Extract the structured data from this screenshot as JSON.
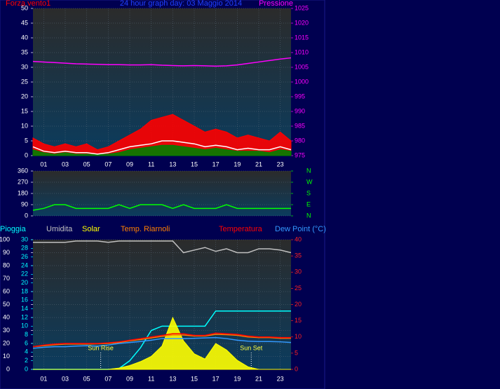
{
  "chart_data": [
    {
      "type": "line",
      "title": "24 hour graph day: 03 Maggio 2014",
      "x": [
        0,
        1,
        2,
        3,
        4,
        5,
        6,
        7,
        8,
        9,
        10,
        11,
        12,
        13,
        14,
        15,
        16,
        17,
        18,
        19,
        20,
        21,
        22,
        23,
        24
      ],
      "xlim": [
        0,
        24
      ],
      "xticks": [
        {
          "value": 1,
          "label": "01"
        },
        {
          "value": 3,
          "label": "03"
        },
        {
          "value": 5,
          "label": "05"
        },
        {
          "value": 7,
          "label": "07"
        },
        {
          "value": 9,
          "label": "09"
        },
        {
          "value": 11,
          "label": "11"
        },
        {
          "value": 13,
          "label": "13"
        },
        {
          "value": 15,
          "label": "15"
        },
        {
          "value": 17,
          "label": "17"
        },
        {
          "value": 19,
          "label": "19"
        },
        {
          "value": 21,
          "label": "21"
        },
        {
          "value": 23,
          "label": "23"
        }
      ],
      "ylim": [
        0,
        50
      ],
      "yticks": [
        0,
        5,
        10,
        15,
        20,
        25,
        30,
        35,
        40,
        45,
        50
      ],
      "y2lim": [
        975,
        1025
      ],
      "y2ticks": [
        975,
        980,
        985,
        990,
        995,
        1000,
        1005,
        1010,
        1015,
        1020,
        1025
      ],
      "grid": true,
      "series": [
        {
          "name": "Forza vento1",
          "color": "#ff0000",
          "style": "area",
          "axis": "y",
          "values": [
            6,
            4,
            3,
            4,
            3,
            4,
            2,
            3,
            5,
            7,
            9,
            12,
            13,
            14,
            12,
            10,
            8,
            9,
            8,
            6,
            7,
            6,
            5,
            8,
            5
          ]
        },
        {
          "color": "#008000",
          "style": "area",
          "axis": "y",
          "values": [
            2,
            1,
            0.5,
            1,
            0.5,
            0.5,
            0.3,
            0.5,
            1,
            2,
            2.5,
            3,
            3.5,
            3.5,
            3,
            2.5,
            2,
            2.5,
            2,
            1.5,
            1.5,
            1.5,
            1,
            2,
            1.5
          ]
        },
        {
          "color": "#ffffff",
          "style": "line",
          "axis": "y",
          "values": [
            3,
            1.5,
            1,
            1.5,
            1,
            1,
            0.5,
            1,
            2,
            3,
            3.5,
            4,
            5,
            5,
            4.5,
            4,
            3,
            3.5,
            3,
            2,
            2.5,
            2,
            2,
            3,
            2
          ]
        },
        {
          "name": "Pressione",
          "color": "#ff00ff",
          "style": "line",
          "axis": "y2",
          "values": [
            1007,
            1006.8,
            1006.6,
            1006.4,
            1006.2,
            1006.1,
            1006,
            1005.9,
            1005.9,
            1005.8,
            1005.8,
            1005.9,
            1005.7,
            1005.6,
            1005.5,
            1005.6,
            1005.5,
            1005.4,
            1005.5,
            1005.8,
            1006.3,
            1006.8,
            1007.3,
            1007.8,
            1008.2
          ]
        }
      ]
    },
    {
      "type": "line",
      "x": [
        0,
        1,
        2,
        3,
        4,
        5,
        6,
        7,
        8,
        9,
        10,
        11,
        12,
        13,
        14,
        15,
        16,
        17,
        18,
        19,
        20,
        21,
        22,
        23,
        24
      ],
      "xlim": [
        0,
        24
      ],
      "ylim": [
        0,
        360
      ],
      "yticks": [
        0,
        90,
        180,
        270,
        360
      ],
      "y2lim": [
        0,
        360
      ],
      "y2ticks": [
        {
          "value": 360,
          "label": "N"
        },
        {
          "value": 270,
          "label": "W"
        },
        {
          "value": 180,
          "label": "S"
        },
        {
          "value": 90,
          "label": "E"
        },
        {
          "value": 0,
          "label": "N"
        }
      ],
      "grid": true,
      "series": [
        {
          "color": "#00ff00",
          "style": "line",
          "axis": "y",
          "values": [
            45,
            60,
            90,
            90,
            60,
            60,
            60,
            60,
            90,
            60,
            90,
            90,
            90,
            60,
            90,
            60,
            60,
            60,
            90,
            60,
            60,
            60,
            60,
            60,
            60
          ]
        }
      ]
    },
    {
      "type": "line",
      "x": [
        0,
        1,
        2,
        3,
        4,
        5,
        6,
        7,
        8,
        9,
        10,
        11,
        12,
        13,
        14,
        15,
        16,
        17,
        18,
        19,
        20,
        21,
        22,
        23,
        24
      ],
      "xlim": [
        0,
        24
      ],
      "xticks": [
        {
          "value": 1,
          "label": "01"
        },
        {
          "value": 3,
          "label": "03"
        },
        {
          "value": 5,
          "label": "05"
        },
        {
          "value": 7,
          "label": "07"
        },
        {
          "value": 9,
          "label": "09"
        },
        {
          "value": 11,
          "label": "11"
        },
        {
          "value": 13,
          "label": "13"
        },
        {
          "value": 15,
          "label": "15"
        },
        {
          "value": 17,
          "label": "17"
        },
        {
          "value": 19,
          "label": "19"
        },
        {
          "value": 21,
          "label": "21"
        },
        {
          "value": 23,
          "label": "23"
        }
      ],
      "ylim": [
        0,
        100
      ],
      "yticks": [
        0,
        10,
        20,
        30,
        40,
        50,
        60,
        70,
        80,
        90,
        100
      ],
      "y3lim": [
        0,
        30
      ],
      "y3ticks": [
        0,
        2,
        4,
        6,
        8,
        10,
        12,
        14,
        16,
        18,
        20,
        22,
        24,
        26,
        28,
        30
      ],
      "y2lim": [
        0,
        40
      ],
      "y2ticks": [
        0,
        5,
        10,
        15,
        20,
        25,
        30,
        35,
        40
      ],
      "grid": true,
      "series": [
        {
          "name": "Pioggia",
          "color": "#00ffff",
          "style": "line",
          "axis": "y3",
          "values": [
            0,
            0,
            0,
            0,
            0,
            0,
            0,
            0,
            0.2,
            2,
            5,
            9,
            10,
            10,
            10,
            10,
            10,
            13.5,
            13.5,
            13.5,
            13.5,
            13.5,
            13.5,
            13.5,
            13.5
          ]
        },
        {
          "name": "Umidita",
          "color": "#c0c0c0",
          "style": "line",
          "axis": "y",
          "values": [
            98,
            98,
            98,
            98,
            99,
            99,
            99,
            98,
            99,
            99,
            99,
            99,
            99,
            99,
            90,
            92,
            94,
            91,
            93,
            90,
            90,
            93,
            93,
            92,
            90
          ]
        },
        {
          "name": "Solar",
          "color": "#ffff00",
          "style": "area",
          "axis": "y",
          "values": [
            0,
            0,
            0,
            0,
            0,
            0,
            0,
            0,
            1,
            3,
            6,
            10,
            18,
            40,
            22,
            12,
            8,
            20,
            15,
            7,
            2,
            0,
            0,
            0,
            0
          ]
        },
        {
          "name": "Temp. Riarnoli",
          "color": "#ff8000",
          "style": "line",
          "axis": "y2",
          "values": [
            7,
            7.3,
            7.6,
            7.8,
            7.8,
            7.8,
            7.9,
            8,
            8.3,
            8.8,
            9.2,
            9.7,
            10.2,
            10.6,
            10.6,
            10.3,
            10.3,
            10.8,
            10.7,
            10.5,
            10,
            9.8,
            9.8,
            9.6,
            9.6
          ]
        },
        {
          "name": "Temperatura",
          "color": "#ff0000",
          "style": "line",
          "axis": "y2",
          "values": [
            7,
            7.5,
            7.8,
            8,
            8,
            8,
            8,
            8.2,
            8.5,
            9,
            9.5,
            10,
            10.5,
            11,
            11,
            10.5,
            10.5,
            11.2,
            11,
            10.8,
            10.3,
            10,
            10,
            9.8,
            9.8
          ]
        },
        {
          "name": "Dew Point (°C)",
          "color": "#3399ff",
          "style": "line",
          "axis": "y2",
          "values": [
            6.5,
            6.8,
            7,
            7,
            7.2,
            7.3,
            7.2,
            7.5,
            8,
            8.3,
            8.6,
            9,
            9.5,
            9.5,
            9.5,
            9.6,
            9.7,
            9.8,
            9.5,
            9,
            8.7,
            8.6,
            8.6,
            8.5,
            8.3
          ]
        }
      ],
      "annotations": [
        {
          "text": "Sun Rise",
          "x": 6.3
        },
        {
          "text": "Sun Set",
          "x": 20.3
        }
      ]
    }
  ]
}
